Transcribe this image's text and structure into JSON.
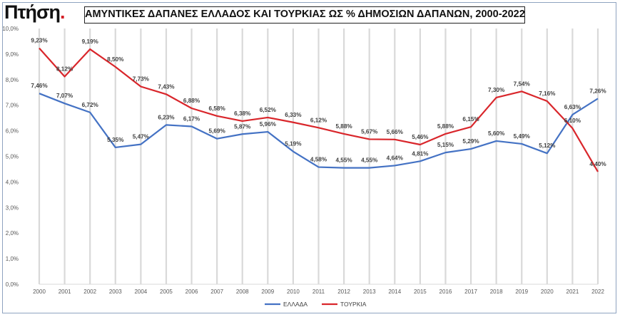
{
  "logo": {
    "text": "Πτήση",
    "dot": "."
  },
  "chart_data": {
    "type": "line",
    "title": "ΑΜΥΝΤΙΚΕΣ ΔΑΠΑΝΕΣ  ΕΛΛΑΔΟΣ ΚΑΙ ΤΟΥΡΚΙΑΣ ΩΣ % ΔΗΜΟΣΙΩΝ ΔΑΠΑΝΩΝ, 2000-2022",
    "xlabel": "",
    "ylabel": "",
    "categories": [
      "2000",
      "2001",
      "2002",
      "2003",
      "2004",
      "2005",
      "2006",
      "2007",
      "2008",
      "2009",
      "2010",
      "2011",
      "2012",
      "2013",
      "2014",
      "2015",
      "2016",
      "2017",
      "2018",
      "2019",
      "2020",
      "2021",
      "2022"
    ],
    "ylim": [
      0,
      10
    ],
    "yticks": [
      "0,0%",
      "1,0%",
      "2,0%",
      "3,0%",
      "4,0%",
      "5,0%",
      "6,0%",
      "7,0%",
      "8,0%",
      "9,0%",
      "10,0%"
    ],
    "series": [
      {
        "name": "ΕΛΛΑΔΑ",
        "color": "#4472c4",
        "values": [
          7.46,
          7.07,
          6.72,
          5.35,
          5.47,
          6.23,
          6.17,
          5.69,
          5.87,
          5.96,
          5.19,
          4.58,
          4.55,
          4.55,
          4.64,
          4.81,
          5.15,
          5.29,
          5.6,
          5.49,
          5.12,
          6.63,
          7.26
        ],
        "labels": [
          "7,46%",
          "7,07%",
          "6,72%",
          "5,35%",
          "5,47%",
          "6,23%",
          "6,17%",
          "5,69%",
          "5,87%",
          "5,96%",
          "5,19%",
          "4,58%",
          "4,55%",
          "4,55%",
          "4,64%",
          "4,81%",
          "5,15%",
          "5,29%",
          "5,60%",
          "5,49%",
          "5,12%",
          "6,63%",
          "7,26%"
        ]
      },
      {
        "name": "ΤΟΥΡΚΙΑ",
        "color": "#d9262b",
        "values": [
          9.23,
          8.12,
          9.19,
          8.5,
          7.73,
          7.43,
          6.88,
          6.58,
          6.38,
          6.52,
          6.33,
          6.12,
          5.88,
          5.67,
          5.66,
          5.46,
          5.88,
          6.15,
          7.3,
          7.54,
          7.16,
          6.1,
          4.4
        ],
        "labels": [
          "9,23%",
          "8,12%",
          "9,19%",
          "8,50%",
          "7,73%",
          "7,43%",
          "6,88%",
          "6,58%",
          "6,38%",
          "6,52%",
          "6,33%",
          "6,12%",
          "5,88%",
          "5,67%",
          "5,66%",
          "5,46%",
          "5,88%",
          "6,15%",
          "7,30%",
          "7,54%",
          "7,16%",
          "6,10%",
          "4,40%"
        ]
      }
    ],
    "grid": "vertical",
    "legend": "bottom-center"
  }
}
